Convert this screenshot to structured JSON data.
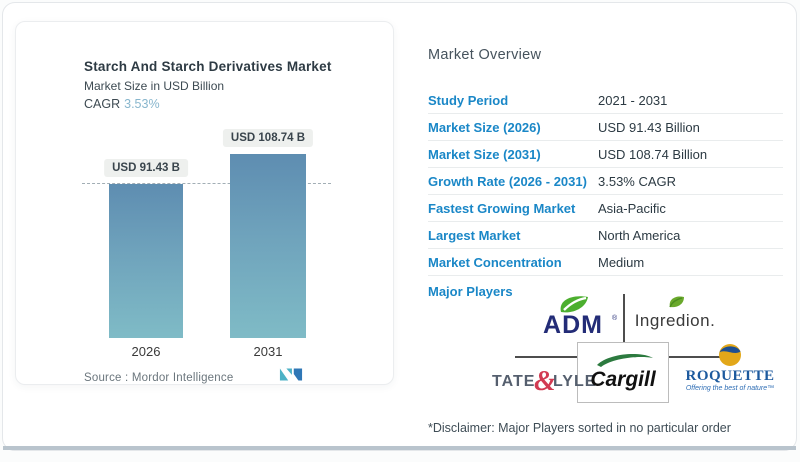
{
  "left_card": {
    "title": "Starch And Starch Derivatives Market",
    "subtitle": "Market Size in USD Billion",
    "cagr_label": "CAGR",
    "cagr_value": "3.53%",
    "source_line": "Source :  Mordor Intelligence"
  },
  "chart_data": {
    "type": "bar",
    "title": "Starch And Starch Derivatives Market",
    "subtitle": "Market Size in USD Billion",
    "unit": "USD Billion",
    "categories": [
      "2026",
      "2031"
    ],
    "values": [
      91.43,
      108.74
    ],
    "bar_labels": [
      "USD 91.43 B",
      "USD 108.74 B"
    ],
    "cagr": "3.53%",
    "reference_line": 91.43,
    "ylim": [
      0,
      130
    ],
    "grid": false,
    "bar_color_top": "#5e8db1",
    "bar_color_bottom": "#7fbbc6"
  },
  "overview": {
    "heading": "Market Overview",
    "rows": [
      {
        "label": "Study Period",
        "value": "2021 - 2031"
      },
      {
        "label": "Market Size (2026)",
        "value": "USD 91.43 Billion"
      },
      {
        "label": "Market Size (2031)",
        "value": "USD 108.74 Billion"
      },
      {
        "label": "Growth Rate (2026 - 2031)",
        "value": "3.53% CAGR"
      },
      {
        "label": "Fastest Growing Market",
        "value": "Asia-Pacific"
      },
      {
        "label": "Largest Market",
        "value": "North America"
      },
      {
        "label": "Market Concentration",
        "value": "Medium"
      }
    ],
    "major_players_label": "Major Players",
    "players": [
      "ADM",
      "Ingredion",
      "Tate & Lyle",
      "Cargill",
      "Roquette"
    ],
    "logos": {
      "adm": {
        "text": "ADM",
        "reg": "®"
      },
      "ingredion": {
        "text": "Ingredion."
      },
      "tate_lyle": {
        "t1": "TATE",
        "amp": "&",
        "t2": "LYLE"
      },
      "cargill": {
        "text": "Cargill"
      },
      "roquette": {
        "text": "ROQUETTE",
        "tagline": "Offering the best of nature™"
      }
    },
    "disclaimer": "*Disclaimer: Major Players sorted in no particular order"
  },
  "colors": {
    "accent_blue": "#1a87c7",
    "value_text": "#2c3a43",
    "cagr_value": "#88b6cd",
    "bar_top": "#5e8db1",
    "bar_bottom": "#7fbbc6",
    "badge_bg": "#eef0ee",
    "adm_navy": "#232c77",
    "leaf_green": "#4caf2f",
    "cargill_green": "#2c7a3f",
    "tate_red": "#d23a52",
    "roquette_blue": "#1d5a9e",
    "roquette_gold": "#e2a719",
    "divider_dark": "#4d4d4d",
    "bottom_band": "#b9c4cd"
  }
}
